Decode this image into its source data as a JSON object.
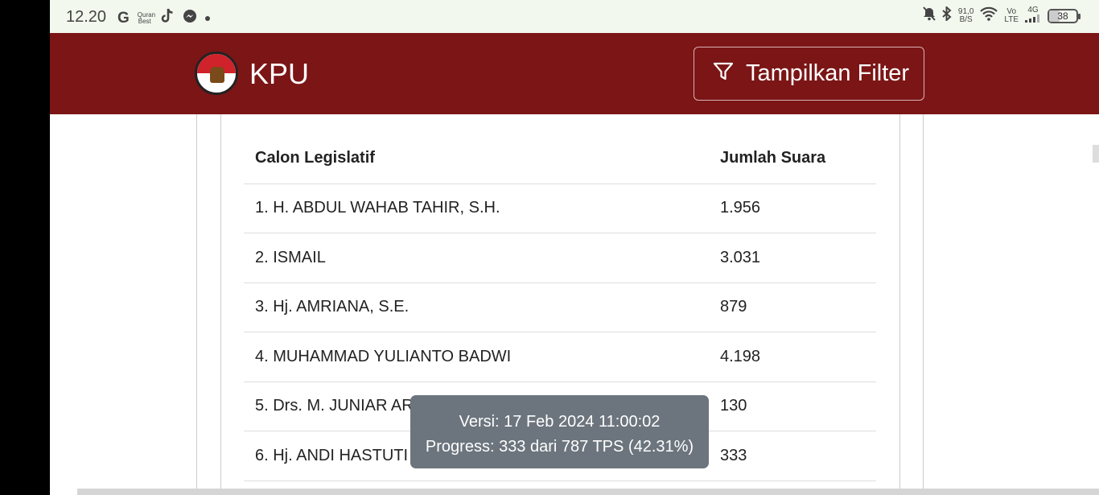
{
  "status_bar": {
    "time": "12.20",
    "app_icons": [
      "google-icon",
      "quran-best-icon",
      "tiktok-icon",
      "messenger-icon",
      "dot-icon"
    ],
    "quran_label": "Quran Best",
    "net_speed_value": "91,0",
    "net_speed_unit": "B/S",
    "volte_top": "Vo",
    "volte_bottom": "LTE",
    "network_type": "4G",
    "battery": "38"
  },
  "header": {
    "brand": "KPU",
    "filter_button_label": "Tampilkan Filter",
    "background_color": "#7b1516"
  },
  "table": {
    "headers": [
      "Calon Legislatif",
      "Jumlah Suara"
    ],
    "rows": [
      {
        "name": "1. H. ABDUL WAHAB TAHIR, S.H.",
        "votes": "1.956"
      },
      {
        "name": "2. ISMAIL",
        "votes": "3.031"
      },
      {
        "name": "3. Hj. AMRIANA, S.E.",
        "votes": "879"
      },
      {
        "name": "4. MUHAMMAD YULIANTO BADWI",
        "votes": "4.198"
      },
      {
        "name": "5. Drs. M. JUNIAR AR",
        "votes": "130"
      },
      {
        "name": "6. Hj. ANDI HASTUTI",
        "votes": "333"
      }
    ]
  },
  "toast": {
    "line1": "Versi: 17 Feb 2024 11:00:02",
    "line2": "Progress: 333 dari 787 TPS (42.31%)"
  }
}
